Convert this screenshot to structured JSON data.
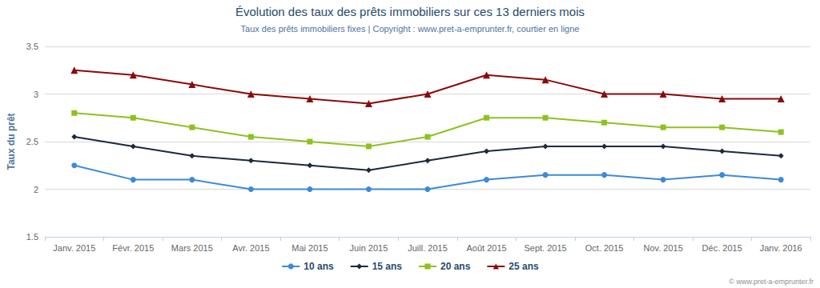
{
  "chart_data": {
    "type": "line",
    "title": "Évolution des taux des prêts immobiliers sur ces 13 derniers mois",
    "subtitle": "Taux des prêts immobiliers fixes | Copyright : www.pret-a-emprunter.fr, courtier en ligne",
    "y_label": "Taux du prêt",
    "credit": "© www.pret-a-emprunter.fr",
    "categories": [
      "Janv. 2015",
      "Févr. 2015",
      "Mars 2015",
      "Avr. 2015",
      "Mai 2015",
      "Juin 2015",
      "Juill. 2015",
      "Août 2015",
      "Sept. 2015",
      "Oct. 2015",
      "Nov. 2015",
      "Déc. 2015",
      "Janv. 2016"
    ],
    "series": [
      {
        "name": "10 ans",
        "color": "#3d8ad8",
        "marker": "circle",
        "values": [
          2.25,
          2.1,
          2.1,
          2.0,
          2.0,
          2.0,
          2.0,
          2.1,
          2.15,
          2.15,
          2.1,
          2.15,
          2.1
        ]
      },
      {
        "name": "15 ans",
        "color": "#1b2a3f",
        "marker": "diamond",
        "values": [
          2.55,
          2.45,
          2.35,
          2.3,
          2.25,
          2.2,
          2.3,
          2.4,
          2.45,
          2.45,
          2.45,
          2.4,
          2.35
        ]
      },
      {
        "name": "20 ans",
        "color": "#8dc21f",
        "marker": "square",
        "values": [
          2.8,
          2.75,
          2.65,
          2.55,
          2.5,
          2.45,
          2.55,
          2.75,
          2.75,
          2.7,
          2.65,
          2.65,
          2.6
        ]
      },
      {
        "name": "25 ans",
        "color": "#8b0a0a",
        "marker": "triangle",
        "values": [
          3.25,
          3.2,
          3.1,
          3.0,
          2.95,
          2.9,
          3.0,
          3.2,
          3.15,
          3.0,
          3.0,
          2.95,
          2.95
        ]
      }
    ],
    "ylim": [
      1.5,
      3.5
    ],
    "yticks": [
      1.5,
      2,
      2.5,
      3,
      3.5
    ],
    "grid": true,
    "legend": "bottom"
  }
}
